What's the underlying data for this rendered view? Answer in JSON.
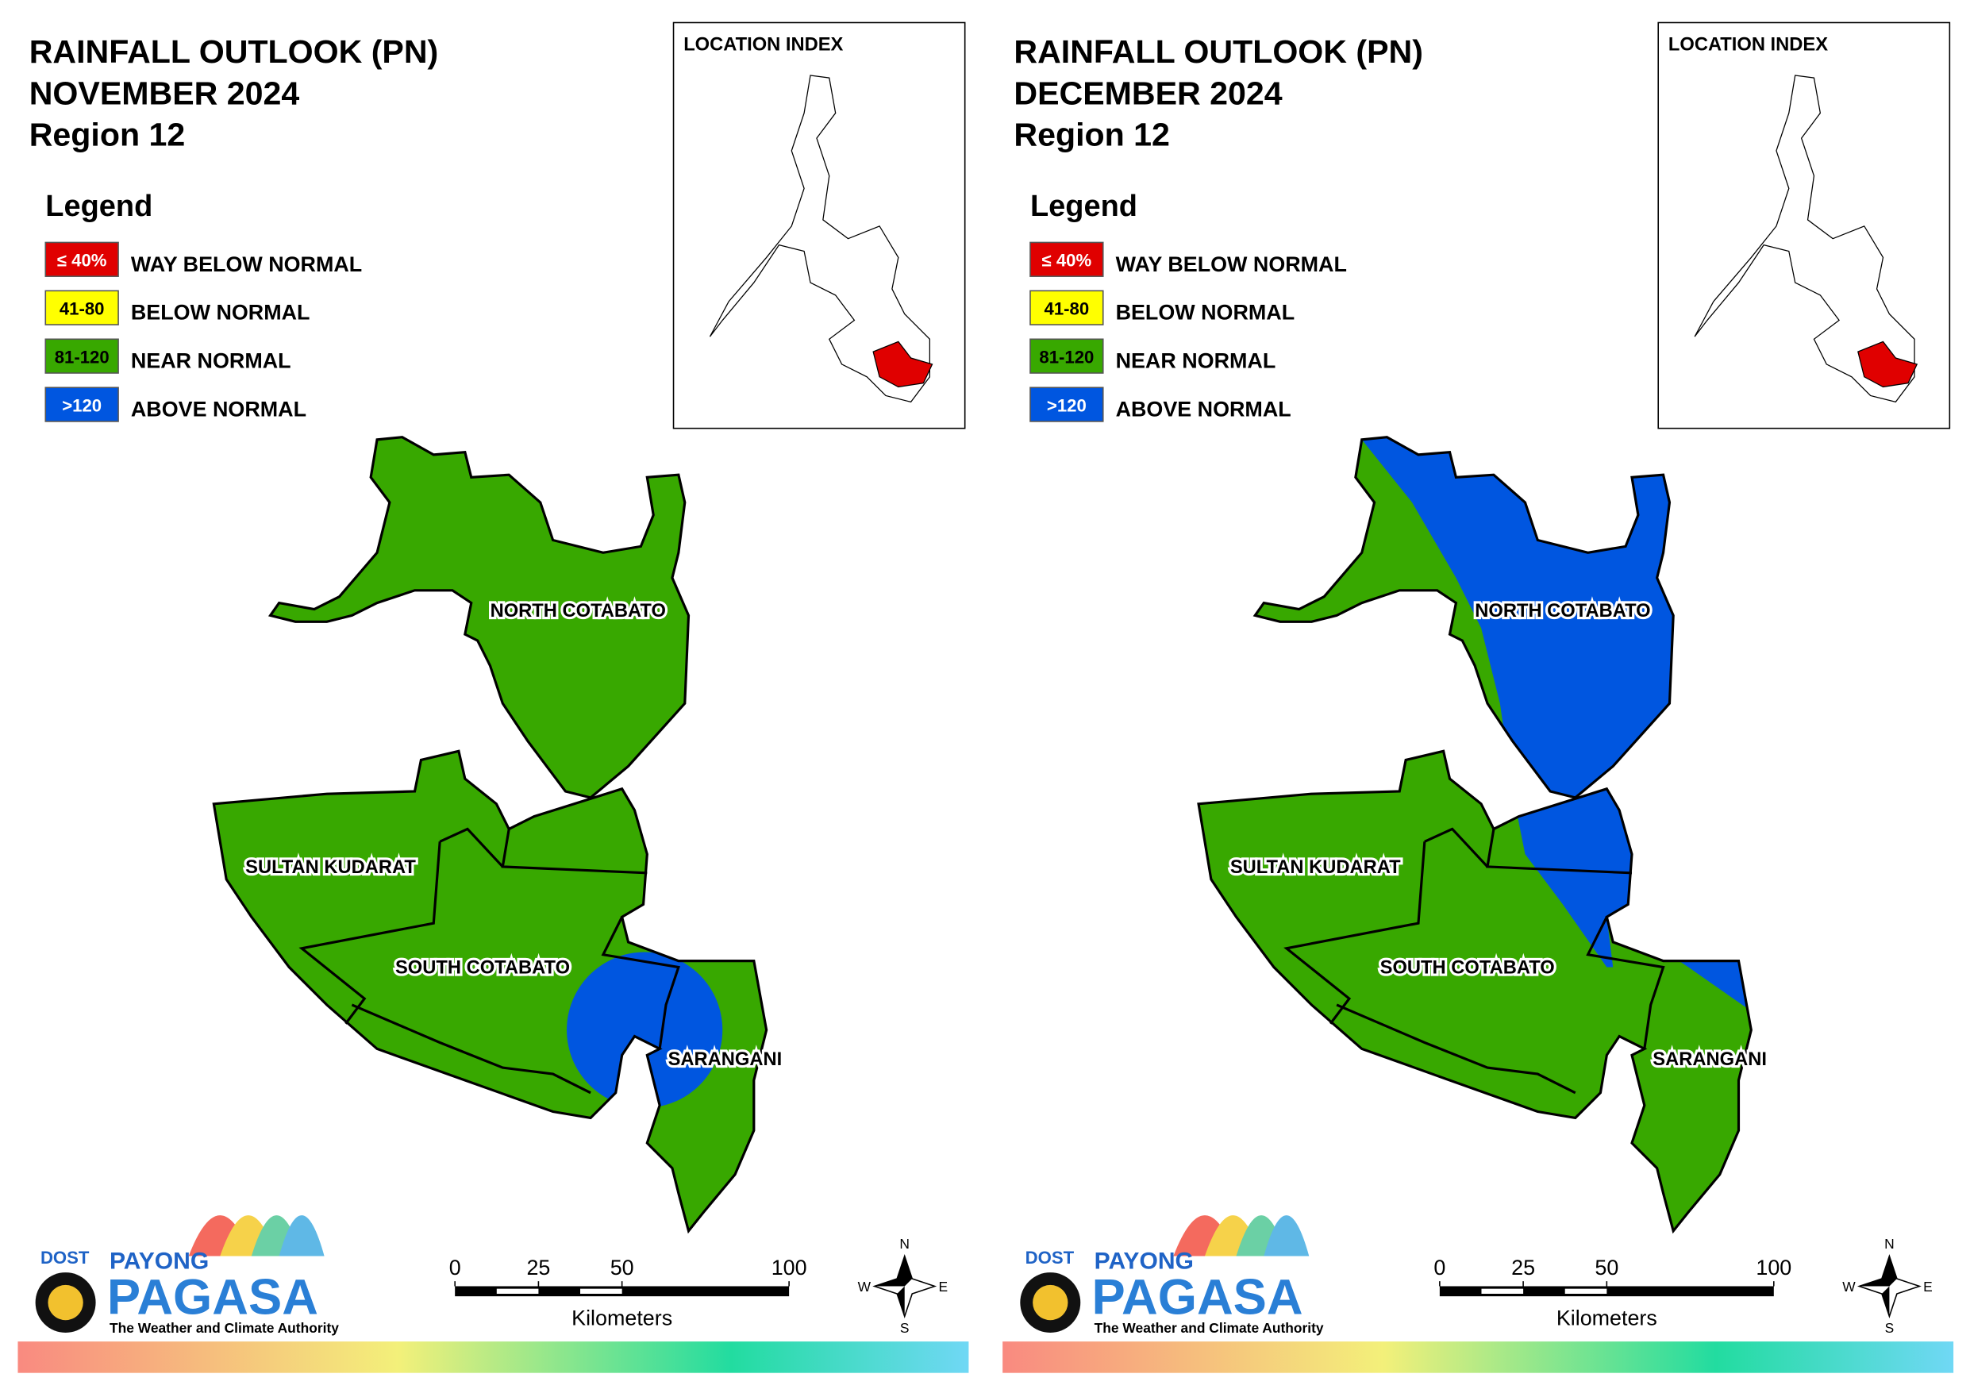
{
  "panels": [
    {
      "title_lines": [
        "RAINFALL OUTLOOK (PN)",
        "NOVEMBER 2024",
        "Region 12"
      ],
      "legend_title": "Legend",
      "legend": [
        {
          "label": "≤ 40%",
          "name": "WAY BELOW NORMAL",
          "color": "#e00000"
        },
        {
          "label": "41-80",
          "name": "BELOW NORMAL",
          "color": "#ffff00"
        },
        {
          "label": "81-120",
          "name": "NEAR NORMAL",
          "color": "#38a800"
        },
        {
          "label": ">120",
          "name": "ABOVE NORMAL",
          "color": "#0056e0"
        }
      ],
      "location_index": "LOCATION INDEX",
      "provinces": [
        "NORTH COTABATO",
        "SULTAN KUDARAT",
        "SOUTH COTABATO",
        "SARANGANI"
      ],
      "scale_ticks": [
        0,
        25,
        50,
        100
      ],
      "scale_unit": "Kilometers",
      "compass": [
        "N",
        "E",
        "S",
        "W"
      ],
      "logo": [
        "DOST",
        "PAYONG",
        "PAGASA",
        "The Weather and Climate Authority"
      ]
    },
    {
      "title_lines": [
        "RAINFALL OUTLOOK (PN)",
        "DECEMBER 2024",
        "Region 12"
      ],
      "legend_title": "Legend",
      "legend": [
        {
          "label": "≤ 40%",
          "name": "WAY BELOW NORMAL",
          "color": "#e00000"
        },
        {
          "label": "41-80",
          "name": "BELOW NORMAL",
          "color": "#ffff00"
        },
        {
          "label": "81-120",
          "name": "NEAR NORMAL",
          "color": "#38a800"
        },
        {
          "label": ">120",
          "name": "ABOVE NORMAL",
          "color": "#0056e0"
        }
      ],
      "location_index": "LOCATION INDEX",
      "provinces": [
        "NORTH COTABATO",
        "SULTAN KUDARAT",
        "SOUTH COTABATO",
        "SARANGANI"
      ],
      "scale_ticks": [
        0,
        25,
        50,
        100
      ],
      "scale_unit": "Kilometers",
      "compass": [
        "N",
        "E",
        "S",
        "W"
      ],
      "logo": [
        "DOST",
        "PAYONG",
        "PAGASA",
        "The Weather and Climate Authority"
      ]
    }
  ]
}
